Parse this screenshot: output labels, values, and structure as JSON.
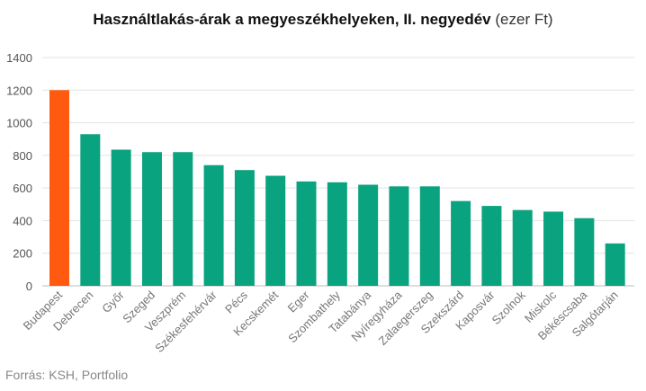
{
  "chart_data": {
    "type": "bar",
    "title": "Használtlakás-árak a megyeszékhelyeken, II. negyedév",
    "title_unit": "(ezer Ft)",
    "categories": [
      "Budapest",
      "Debrecen",
      "Győr",
      "Szeged",
      "Veszprém",
      "Székesfehérvár",
      "Pécs",
      "Kecskemét",
      "Eger",
      "Szombathely",
      "Tatabánya",
      "Nyíregyháza",
      "Zalaegerszeg",
      "Szekszárd",
      "Kaposvár",
      "Szolnok",
      "Miskolc",
      "Békéscsaba",
      "Salgótarján"
    ],
    "values": [
      1200,
      930,
      835,
      820,
      820,
      740,
      710,
      675,
      640,
      635,
      620,
      610,
      610,
      520,
      490,
      465,
      455,
      415,
      260
    ],
    "ylim": [
      0,
      1400
    ],
    "yticks": [
      0,
      200,
      400,
      600,
      800,
      1000,
      1200,
      1400
    ],
    "grid": true,
    "colors": {
      "highlight": "#ff5a10",
      "default": "#0aa37f"
    },
    "highlight_category": "Budapest",
    "source": "Forrás: KSH, Portfolio"
  }
}
